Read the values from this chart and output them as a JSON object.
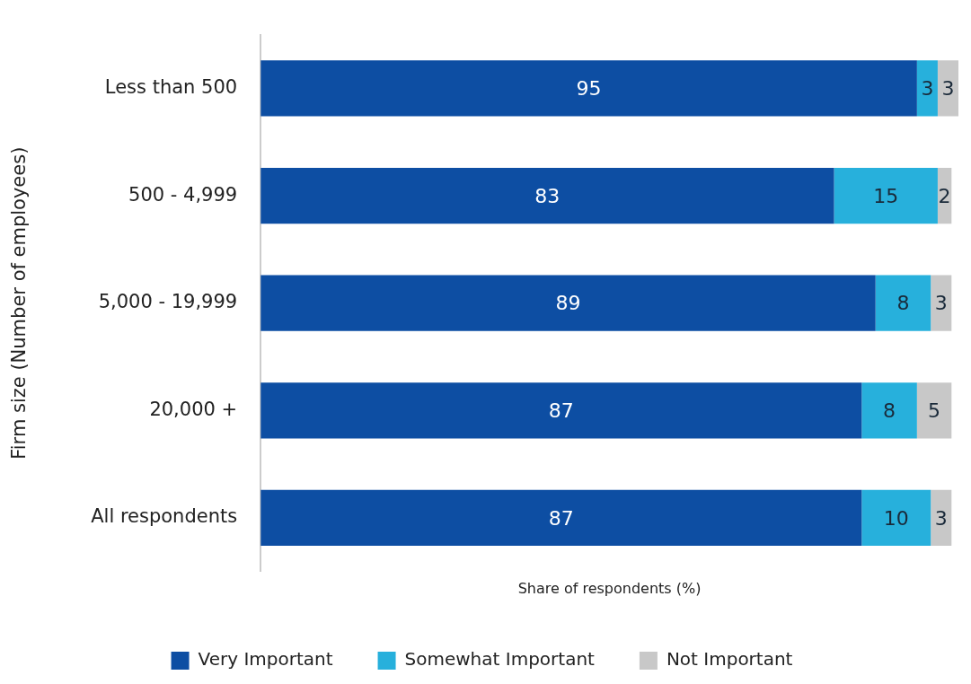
{
  "chart_data": {
    "type": "bar",
    "orientation": "horizontal",
    "stacked": true,
    "ylabel": "Firm size (Number of employees)",
    "xlabel": "Share of respondents (%)",
    "categories": [
      "Less than 500",
      "500 - 4,999",
      "5,000 - 19,999",
      "20,000 +",
      "All respondents"
    ],
    "series": [
      {
        "name": "Very Important",
        "color": "#0d4ea3",
        "values": [
          95,
          83,
          89,
          87,
          87
        ]
      },
      {
        "name": "Somewhat Important",
        "color": "#27b0dc",
        "values": [
          3,
          15,
          8,
          8,
          10
        ]
      },
      {
        "name": "Not Important",
        "color": "#c8c8c8",
        "values": [
          3,
          2,
          3,
          5,
          3
        ]
      }
    ],
    "data_labels": true,
    "grid": false,
    "legend": "bottom",
    "tick_labels": "y"
  }
}
